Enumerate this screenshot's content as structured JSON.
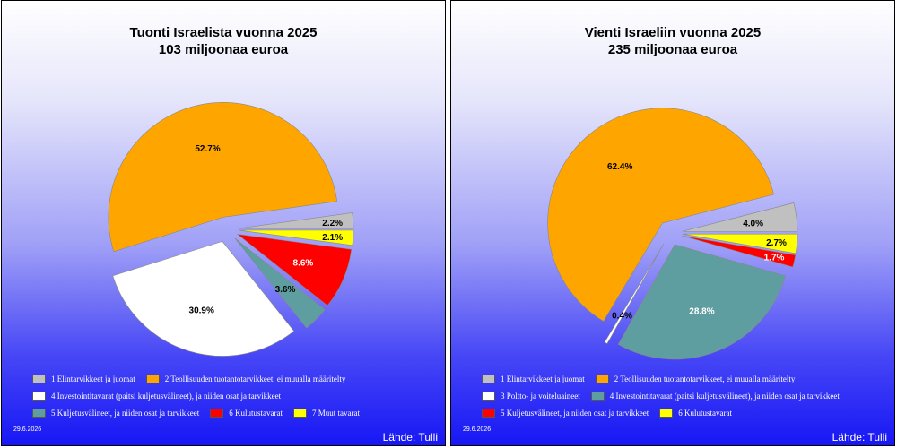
{
  "chart_data": [
    {
      "type": "pie",
      "title": "Tuonti Israelista vuonna 2025",
      "subtitle": "103 miljoonaa euroa",
      "slices": [
        {
          "label": "1 Elintarvikkeet ja juomat",
          "value": 2.2,
          "value_label": "2.2%",
          "color": "#c0c0c0"
        },
        {
          "label": "2 Teollisuuden tuotantotarvikkeet, ei muualla määritelty",
          "value": 52.7,
          "value_label": "52.7%",
          "color": "#ffa500"
        },
        {
          "label": "4 Investointitavarat (paitsi kuljetusvälineet), ja niiden osat ja tarvikkeet",
          "value": 30.9,
          "value_label": "30.9%",
          "color": "#ffffff"
        },
        {
          "label": "5 Kuljetusvälineet, ja niiden osat ja tarvikkeet",
          "value": 3.6,
          "value_label": "3.6%",
          "color": "#5f9ea0"
        },
        {
          "label": "6 Kulutustavarat",
          "value": 8.6,
          "value_label": "8.6%",
          "color": "#ff0000"
        },
        {
          "label": "7 Muut tavarat",
          "value": 2.1,
          "value_label": "2.1%",
          "color": "#ffff00"
        }
      ],
      "legend_placement": "bottom"
    },
    {
      "type": "pie",
      "title": "Vienti Israeliin vuonna 2025",
      "subtitle": "235 miljoonaa euroa",
      "slices": [
        {
          "label": "1 Elintarvikkeet ja juomat",
          "value": 4.0,
          "value_label": "4.0%",
          "color": "#c0c0c0"
        },
        {
          "label": "2 Teollisuuden tuotantotarvikkeet, ei muualla määritelty",
          "value": 62.4,
          "value_label": "62.4%",
          "color": "#ffa500"
        },
        {
          "label": "3 Poltto- ja voiteluaineet",
          "value": 0.4,
          "value_label": "0.4%",
          "color": "#ffffff"
        },
        {
          "label": "4 Investointitavarat (paitsi kuljetusvälineet), ja niiden osat ja tarvikkeet",
          "value": 28.8,
          "value_label": "28.8%",
          "color": "#5f9ea0"
        },
        {
          "label": "5 Kuljetusvälineet, ja niiden osat ja tarvikkeet",
          "value": 1.7,
          "value_label": "1.7%",
          "color": "#ff0000"
        },
        {
          "label": "6 Kulutustavarat",
          "value": 2.7,
          "value_label": "2.7%",
          "color": "#ffff00"
        }
      ],
      "legend_placement": "bottom"
    }
  ],
  "footer": {
    "date": "29.6.2026",
    "source": "Lähde: Tulli"
  }
}
